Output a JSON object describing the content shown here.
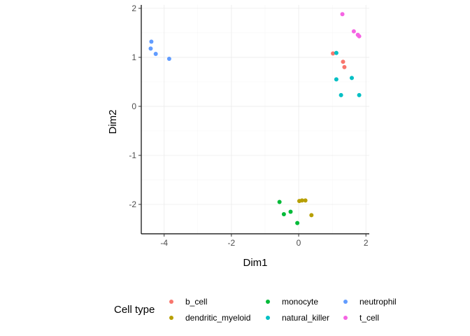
{
  "chart_data": {
    "type": "scatter",
    "xlabel": "Dim1",
    "ylabel": "Dim2",
    "xlim": [
      -4.68,
      2.1
    ],
    "ylim": [
      -2.6,
      2.07
    ],
    "x_ticks": [
      -4,
      -2,
      0,
      2
    ],
    "y_ticks": [
      -2,
      -1,
      0,
      1,
      2
    ],
    "grid": true,
    "legend": {
      "title": "Cell type",
      "position": "bottom"
    },
    "series": [
      {
        "name": "b_cell",
        "color": "#F8766D",
        "points": [
          [
            1.02,
            1.08
          ],
          [
            1.32,
            0.91
          ],
          [
            1.36,
            0.8
          ]
        ]
      },
      {
        "name": "dendritic_myeloid",
        "color": "#B79F00",
        "points": [
          [
            0.02,
            -1.93
          ],
          [
            0.1,
            -1.92
          ],
          [
            0.2,
            -1.92
          ],
          [
            0.38,
            -2.22
          ]
        ]
      },
      {
        "name": "monocyte",
        "color": "#00BA38",
        "points": [
          [
            -0.57,
            -1.95
          ],
          [
            -0.44,
            -2.2
          ],
          [
            -0.24,
            -2.15
          ],
          [
            -0.04,
            -2.38
          ]
        ]
      },
      {
        "name": "natural_killer",
        "color": "#00BFC4",
        "points": [
          [
            1.12,
            1.09
          ],
          [
            1.12,
            0.55
          ],
          [
            1.26,
            0.23
          ],
          [
            1.58,
            0.58
          ],
          [
            1.8,
            0.23
          ]
        ]
      },
      {
        "name": "neutrophil",
        "color": "#619CFF",
        "points": [
          [
            -4.38,
            1.32
          ],
          [
            -4.4,
            1.18
          ],
          [
            -4.25,
            1.07
          ],
          [
            -3.85,
            0.97
          ]
        ]
      },
      {
        "name": "t_cell",
        "color": "#F564E3",
        "points": [
          [
            1.3,
            1.88
          ],
          [
            1.64,
            1.53
          ],
          [
            1.76,
            1.46
          ],
          [
            1.8,
            1.43
          ]
        ]
      }
    ]
  }
}
